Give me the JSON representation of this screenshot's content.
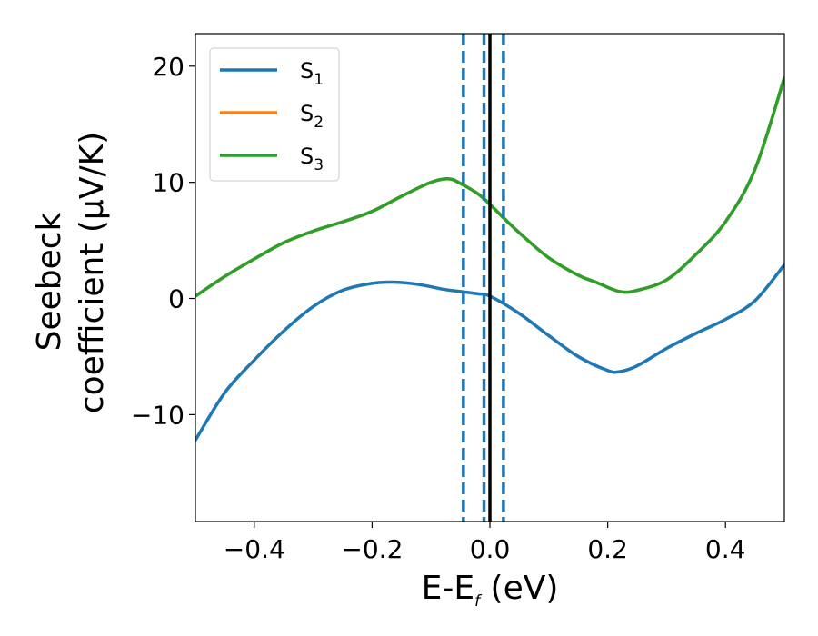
{
  "chart_data": {
    "type": "line",
    "xlabel_main": "E-E",
    "xlabel_sub": "f",
    "xlabel_unit": " (eV)",
    "ylabel_line1": "Seebeck",
    "ylabel_line2": "coefficient  (μV/K)",
    "xlim": [
      -0.5,
      0.5
    ],
    "ylim": [
      -19.2,
      22.8
    ],
    "xticks": [
      -0.4,
      -0.2,
      0.0,
      0.2,
      0.4
    ],
    "xtick_labels": [
      "−0.4",
      "−0.2",
      "0.0",
      "0.2",
      "0.4"
    ],
    "yticks": [
      -10,
      0,
      10,
      20
    ],
    "ytick_labels": [
      "−10",
      "0",
      "10",
      "20"
    ],
    "grid": false,
    "legend_position": "top-left",
    "series": [
      {
        "name_main": "S",
        "name_sub": "1",
        "color": "#1f77b4",
        "x": [
          -0.5,
          -0.45,
          -0.4,
          -0.35,
          -0.3,
          -0.25,
          -0.2,
          -0.16,
          -0.12,
          -0.08,
          -0.05,
          -0.02,
          0.0,
          0.05,
          0.1,
          0.15,
          0.2,
          0.22,
          0.25,
          0.3,
          0.35,
          0.4,
          0.45,
          0.5
        ],
        "y": [
          -12.2,
          -8.1,
          -5.3,
          -2.8,
          -0.7,
          0.7,
          1.3,
          1.4,
          1.2,
          0.8,
          0.6,
          0.4,
          0.2,
          -1.3,
          -3.2,
          -5.0,
          -6.2,
          -6.3,
          -5.8,
          -4.3,
          -3.0,
          -1.8,
          -0.2,
          2.9
        ]
      },
      {
        "name_main": "S",
        "name_sub": "2",
        "color": "#ff7f0e",
        "x": [
          -0.5,
          -0.45,
          -0.4,
          -0.35,
          -0.3,
          -0.25,
          -0.2,
          -0.15,
          -0.1,
          -0.07,
          -0.05,
          -0.02,
          0.0,
          0.03,
          0.06,
          0.1,
          0.15,
          0.18,
          0.22,
          0.25,
          0.3,
          0.35,
          0.4,
          0.45,
          0.5
        ],
        "y": [
          0.2,
          1.9,
          3.4,
          4.8,
          5.8,
          6.6,
          7.5,
          8.8,
          10.0,
          10.3,
          9.9,
          9.0,
          8.1,
          6.6,
          5.2,
          3.5,
          2.0,
          1.4,
          0.6,
          0.7,
          1.6,
          3.8,
          6.6,
          11.1,
          19.0
        ]
      },
      {
        "name_main": "S",
        "name_sub": "3",
        "color": "#2ca02c",
        "x": [
          -0.5,
          -0.45,
          -0.4,
          -0.35,
          -0.3,
          -0.25,
          -0.2,
          -0.15,
          -0.1,
          -0.07,
          -0.05,
          -0.02,
          0.0,
          0.03,
          0.06,
          0.1,
          0.15,
          0.18,
          0.22,
          0.25,
          0.3,
          0.35,
          0.4,
          0.45,
          0.5
        ],
        "y": [
          0.2,
          1.9,
          3.4,
          4.8,
          5.8,
          6.6,
          7.5,
          8.8,
          10.0,
          10.3,
          9.9,
          9.0,
          8.1,
          6.6,
          5.2,
          3.5,
          2.0,
          1.4,
          0.6,
          0.7,
          1.6,
          3.8,
          6.6,
          11.1,
          19.0
        ]
      }
    ],
    "vlines": [
      {
        "x": -0.045,
        "style": "dashed",
        "color": "#1f77b4"
      },
      {
        "x": -0.01,
        "style": "dashed",
        "color": "#1f77b4"
      },
      {
        "x": 0.023,
        "style": "dashed",
        "color": "#1f77b4"
      },
      {
        "x": 0.0,
        "style": "solid",
        "color": "#000000"
      }
    ]
  }
}
